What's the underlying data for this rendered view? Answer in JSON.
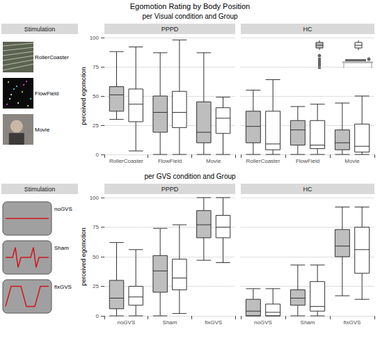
{
  "title": "Egomotion Rating by Body Position",
  "chart_data": [
    {
      "type": "boxplot",
      "subtitle": "per Visual condition and Group",
      "ylabel": "perceived egomotion",
      "ylim": [
        0,
        100
      ],
      "yticks": [
        0,
        25,
        50,
        75,
        100
      ],
      "grid": true,
      "categories": [
        "RollerCoaster",
        "FlowField",
        "Movie"
      ],
      "stimulation": {
        "title": "Stimulation",
        "items": [
          "RollerCoaster",
          "FlowField",
          "Movie"
        ]
      },
      "panels": [
        {
          "title": "PPPD",
          "series": [
            {
              "color": "#bebebe",
              "values": [
                [
                  30,
                  37,
                  51,
                  58,
                  88
                ],
                [
                  0,
                  19,
                  36,
                  50,
                  87
                ],
                [
                  0,
                  10,
                  19,
                  45,
                  87
                ]
              ]
            },
            {
              "color": "#ffffff",
              "values": [
                [
                  3,
                  28,
                  43,
                  56,
                  92
                ],
                [
                  0,
                  23,
                  36,
                  54,
                  98
                ],
                [
                  0,
                  18,
                  31,
                  40,
                  49
                ]
              ]
            }
          ]
        },
        {
          "title": "HC",
          "series": [
            {
              "color": "#bebebe",
              "values": [
                [
                  0,
                  10,
                  24,
                  37,
                  55
                ],
                [
                  0,
                  8,
                  21,
                  29,
                  41
                ],
                [
                  0,
                  4,
                  10,
                  21,
                  44
                ]
              ]
            },
            {
              "color": "#ffffff",
              "values": [
                [
                  0,
                  4,
                  9,
                  37,
                  64
                ],
                [
                  0,
                  5,
                  8,
                  29,
                  43
                ],
                [
                  0,
                  2,
                  7,
                  26,
                  50
                ]
              ]
            }
          ]
        }
      ]
    },
    {
      "type": "boxplot",
      "subtitle": "per GVS condition and Group",
      "ylabel": "perceived egomotion",
      "ylim": [
        0,
        100
      ],
      "yticks": [
        0,
        25,
        50,
        75,
        100
      ],
      "grid": true,
      "categories": [
        "noGVS",
        "Sham",
        "fixGVS"
      ],
      "stimulation": {
        "title": "Stimulation",
        "items": [
          "noGVS",
          "Sham",
          "fixGVS"
        ]
      },
      "panels": [
        {
          "title": "PPPD",
          "series": [
            {
              "color": "#bebebe",
              "values": [
                [
                  0,
                  6,
                  15,
                  30,
                  62
                ],
                [
                  0,
                  20,
                  38,
                  51,
                  74
                ],
                [
                  47,
                  66,
                  77,
                  89,
                  100
                ]
              ]
            },
            {
              "color": "#ffffff",
              "values": [
                [
                  0,
                  9,
                  16,
                  25,
                  56
                ],
                [
                  2,
                  22,
                  32,
                  48,
                  77
                ],
                [
                  45,
                  66,
                  75,
                  85,
                  100
                ]
              ]
            }
          ]
        },
        {
          "title": "HC",
          "series": [
            {
              "color": "#bebebe",
              "values": [
                [
                  0,
                  0,
                  4,
                  14,
                  23
                ],
                [
                  0,
                  9,
                  15,
                  22,
                  43
                ],
                [
                  17,
                  50,
                  59,
                  73,
                  92
                ]
              ]
            },
            {
              "color": "#ffffff",
              "values": [
                [
                  0,
                  0,
                  3,
                  10,
                  23
                ],
                [
                  0,
                  4,
                  8,
                  29,
                  43
                ],
                [
                  14,
                  36,
                  56,
                  75,
                  92
                ]
              ]
            }
          ]
        }
      ]
    }
  ]
}
